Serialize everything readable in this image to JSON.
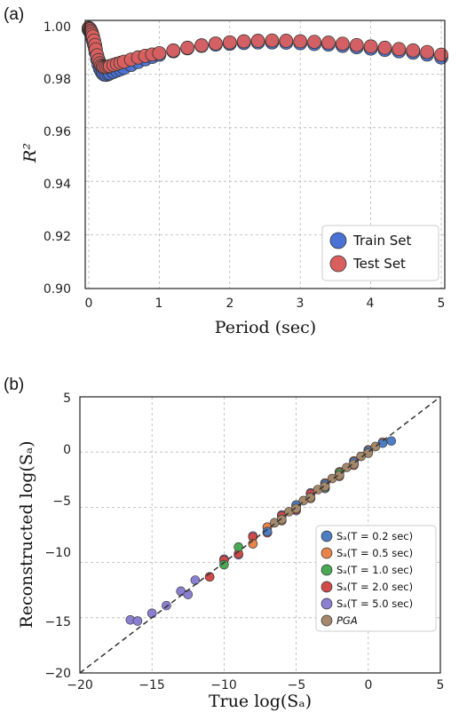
{
  "chart_data": [
    {
      "panel": "(a)",
      "type": "scatter",
      "xlabel": "Period (sec)",
      "ylabel": "R²",
      "xlim": [
        -0.05,
        5.05
      ],
      "ylim": [
        0.9,
        1.0
      ],
      "xticks": [
        0,
        1,
        2,
        3,
        4,
        5
      ],
      "yticks": [
        0.9,
        0.92,
        0.94,
        0.96,
        0.98,
        1.0
      ],
      "ytick_labels": [
        "0.90",
        "0.92",
        "0.94",
        "0.96",
        "0.98",
        "1.00"
      ],
      "grid": true,
      "legend_position": "bottom-right",
      "series": [
        {
          "name": "Train Set",
          "color": "#4a72d4",
          "x": [
            0.0,
            0.01,
            0.02,
            0.03,
            0.04,
            0.05,
            0.06,
            0.075,
            0.09,
            0.1,
            0.12,
            0.14,
            0.16,
            0.18,
            0.2,
            0.22,
            0.25,
            0.28,
            0.3,
            0.35,
            0.4,
            0.45,
            0.5,
            0.6,
            0.7,
            0.8,
            0.9,
            1.0,
            1.2,
            1.4,
            1.6,
            1.8,
            2.0,
            2.2,
            2.4,
            2.6,
            2.8,
            3.0,
            3.2,
            3.4,
            3.6,
            3.8,
            4.0,
            4.2,
            4.4,
            4.6,
            4.8,
            5.0
          ],
          "values": [
            0.9965,
            0.9962,
            0.9958,
            0.9952,
            0.9945,
            0.9935,
            0.9925,
            0.991,
            0.9895,
            0.988,
            0.9855,
            0.9835,
            0.982,
            0.981,
            0.9802,
            0.9798,
            0.9797,
            0.98,
            0.9803,
            0.9808,
            0.9813,
            0.9818,
            0.9823,
            0.9834,
            0.9845,
            0.9855,
            0.9864,
            0.9872,
            0.9885,
            0.9896,
            0.9905,
            0.991,
            0.9913,
            0.9916,
            0.9918,
            0.9918,
            0.9917,
            0.9915,
            0.9912,
            0.991,
            0.9905,
            0.99,
            0.9895,
            0.989,
            0.9885,
            0.988,
            0.9873,
            0.9862
          ]
        },
        {
          "name": "Test Set",
          "color": "#d95f5f",
          "x": [
            0.0,
            0.01,
            0.02,
            0.03,
            0.04,
            0.05,
            0.06,
            0.075,
            0.09,
            0.1,
            0.12,
            0.14,
            0.16,
            0.18,
            0.2,
            0.22,
            0.25,
            0.28,
            0.3,
            0.35,
            0.4,
            0.45,
            0.5,
            0.6,
            0.7,
            0.8,
            0.9,
            1.0,
            1.2,
            1.4,
            1.6,
            1.8,
            2.0,
            2.2,
            2.4,
            2.6,
            2.8,
            3.0,
            3.2,
            3.4,
            3.6,
            3.8,
            4.0,
            4.2,
            4.4,
            4.6,
            4.8,
            5.0
          ],
          "values": [
            0.9972,
            0.997,
            0.9967,
            0.9962,
            0.9956,
            0.9948,
            0.994,
            0.9925,
            0.9908,
            0.9892,
            0.987,
            0.9852,
            0.984,
            0.9832,
            0.9828,
            0.9826,
            0.9826,
            0.9828,
            0.983,
            0.9834,
            0.9838,
            0.9842,
            0.9846,
            0.9854,
            0.9862,
            0.9868,
            0.9873,
            0.9878,
            0.9888,
            0.9898,
            0.9907,
            0.9914,
            0.9918,
            0.9922,
            0.9924,
            0.9925,
            0.9924,
            0.9922,
            0.992,
            0.9917,
            0.9913,
            0.9908,
            0.9903,
            0.9898,
            0.9893,
            0.9888,
            0.9882,
            0.9872
          ]
        }
      ]
    },
    {
      "panel": "(b)",
      "type": "scatter",
      "xlabel": "True log(Sₐ)",
      "ylabel": "Reconstructed log(Sₐ)",
      "xlim": [
        -20,
        5
      ],
      "ylim": [
        -20,
        5
      ],
      "xticks": [
        -20,
        -15,
        -10,
        -5,
        0,
        5
      ],
      "yticks": [
        -20,
        -15,
        -10,
        -5,
        0,
        5
      ],
      "xtick_labels": [
        "−20",
        "−15",
        "−10",
        "−5",
        "0",
        "5"
      ],
      "ytick_labels": [
        "−20",
        "−15",
        "−10",
        "−5",
        "0",
        "5"
      ],
      "grid": true,
      "reference_line": "y = x (dashed)",
      "legend_position": "bottom-right",
      "series": [
        {
          "name": "Sₐ(T = 0.2 sec)",
          "color": "#4f7dc3",
          "x": [
            -7.0,
            -6.0,
            -5.0,
            -4.0,
            -3.0,
            -2.0,
            -1.0,
            0.0,
            1.0,
            1.6
          ],
          "values": [
            -7.2,
            -6.1,
            -4.8,
            -4.1,
            -2.9,
            -2.1,
            -0.9,
            0.1,
            0.8,
            1.0
          ]
        },
        {
          "name": "Sₐ(T = 0.5 sec)",
          "color": "#e8834a",
          "x": [
            -8.0,
            -7.0,
            -6.0,
            -5.0,
            -4.0,
            -3.0,
            -2.0,
            -1.0,
            0.0,
            1.0
          ],
          "values": [
            -8.3,
            -6.8,
            -6.2,
            -4.9,
            -4.2,
            -2.8,
            -2.2,
            -0.8,
            0.2,
            0.9
          ]
        },
        {
          "name": "Sₐ(T = 1.0 sec)",
          "color": "#4aa954",
          "x": [
            -10.0,
            -9.0,
            -8.0,
            -7.0,
            -6.0,
            -5.0,
            -4.0,
            -3.0,
            -2.0,
            -1.0,
            0.0
          ],
          "values": [
            -10.2,
            -8.6,
            -8.3,
            -6.8,
            -6.2,
            -4.8,
            -4.1,
            -3.2,
            -1.9,
            -1.1,
            0.1
          ]
        },
        {
          "name": "Sₐ(T = 2.0 sec)",
          "color": "#cf4a48",
          "x": [
            -11.0,
            -10.0,
            -9.0,
            -8.0,
            -7.0,
            -6.0,
            -5.0,
            -4.0,
            -3.0,
            -2.0,
            -1.0
          ],
          "values": [
            -11.3,
            -9.8,
            -9.2,
            -7.7,
            -7.3,
            -5.8,
            -5.2,
            -3.8,
            -3.2,
            -1.8,
            -1.2
          ]
        },
        {
          "name": "Sₐ(T = 5.0 sec)",
          "color": "#8b7fd1",
          "x": [
            -16.5,
            -16.0,
            -15.0,
            -14.0,
            -13.0,
            -12.5,
            -12.0,
            -11.0,
            -10.0,
            -9.0,
            -8.0,
            -7.0,
            -6.0,
            -5.0,
            -4.0,
            -3.0,
            -2.0
          ],
          "values": [
            -15.2,
            -15.3,
            -14.6,
            -13.9,
            -12.6,
            -12.9,
            -11.6,
            -11.3,
            -9.7,
            -9.3,
            -7.6,
            -7.3,
            -5.7,
            -5.3,
            -3.7,
            -3.3,
            -1.8
          ]
        },
        {
          "name": "PGA",
          "color": "#a5876a",
          "x": [
            -6.5,
            -6.0,
            -5.5,
            -5.0,
            -4.5,
            -4.0,
            -3.5,
            -3.0,
            -2.5,
            -2.0,
            -1.5,
            -1.0,
            -0.5,
            0.0,
            0.5
          ],
          "values": [
            -6.4,
            -6.1,
            -5.4,
            -5.1,
            -4.4,
            -4.1,
            -3.4,
            -3.1,
            -2.4,
            -2.1,
            -1.4,
            -1.1,
            -0.4,
            -0.1,
            0.5
          ]
        }
      ]
    }
  ]
}
